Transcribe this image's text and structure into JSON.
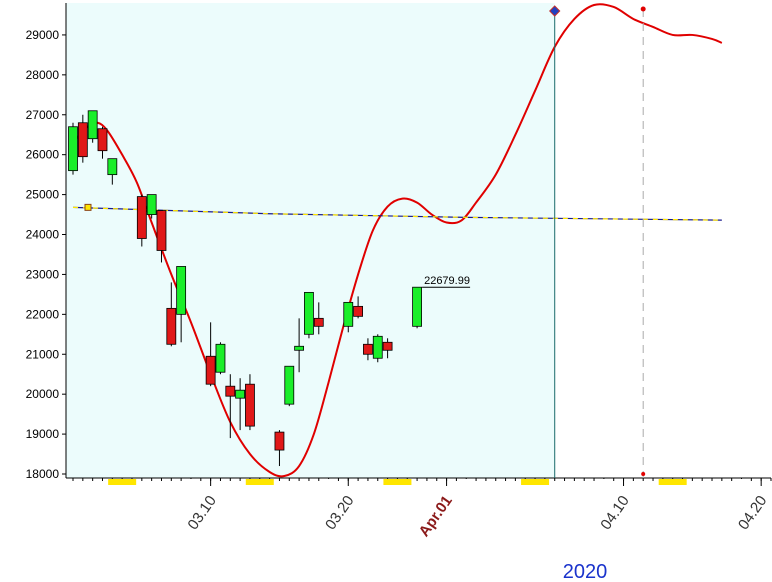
{
  "chart_data": {
    "type": "candlestick",
    "title": "",
    "xlabel": "",
    "ylabel": "",
    "ylim": [
      17900,
      29800
    ],
    "y_ticks": [
      18000,
      19000,
      20000,
      21000,
      22000,
      23000,
      24000,
      25000,
      26000,
      27000,
      28000,
      29000
    ],
    "x_tick_labels": [
      {
        "label": "03.10",
        "day": 14,
        "month_start": false
      },
      {
        "label": "03.20",
        "day": 28,
        "month_start": false
      },
      {
        "label": "Apr.01",
        "day": 38,
        "month_start": true
      },
      {
        "label": "04.10",
        "day": 56,
        "month_start": false
      },
      {
        "label": "04.20",
        "day": 70,
        "month_start": false
      }
    ],
    "year_label": "2020",
    "x_range": [
      0,
      71
    ],
    "forecast_start_day": 49,
    "forecast_peak_day": 58,
    "price_label": "22679.99",
    "candles": [
      {
        "day": 0,
        "open": 25600,
        "high": 26800,
        "low": 25500,
        "close": 26700
      },
      {
        "day": 1,
        "open": 26800,
        "high": 27000,
        "low": 25800,
        "close": 25950
      },
      {
        "day": 2,
        "open": 26400,
        "high": 27100,
        "low": 26300,
        "close": 27100
      },
      {
        "day": 3,
        "open": 26650,
        "high": 26700,
        "low": 25900,
        "close": 26100
      },
      {
        "day": 4,
        "open": 25500,
        "high": 25900,
        "low": 25250,
        "close": 25900
      },
      {
        "day": 7,
        "open": 24950,
        "high": 25000,
        "low": 23700,
        "close": 23900
      },
      {
        "day": 8,
        "open": 24500,
        "high": 25000,
        "low": 24400,
        "close": 25000
      },
      {
        "day": 9,
        "open": 24600,
        "high": 24600,
        "low": 23300,
        "close": 23600
      },
      {
        "day": 10,
        "open": 22150,
        "high": 22800,
        "low": 21200,
        "close": 21250
      },
      {
        "day": 11,
        "open": 22000,
        "high": 23200,
        "low": 21300,
        "close": 23200
      },
      {
        "day": 14,
        "open": 20950,
        "high": 21800,
        "low": 20200,
        "close": 20250
      },
      {
        "day": 15,
        "open": 20550,
        "high": 21300,
        "low": 20500,
        "close": 21250
      },
      {
        "day": 16,
        "open": 20200,
        "high": 20500,
        "low": 18900,
        "close": 19950
      },
      {
        "day": 17,
        "open": 19900,
        "high": 20400,
        "low": 19100,
        "close": 20100
      },
      {
        "day": 18,
        "open": 20250,
        "high": 20500,
        "low": 19100,
        "close": 19200
      },
      {
        "day": 21,
        "open": 19050,
        "high": 19100,
        "low": 18200,
        "close": 18600
      },
      {
        "day": 22,
        "open": 19750,
        "high": 20700,
        "low": 19700,
        "close": 20700
      },
      {
        "day": 23,
        "open": 21100,
        "high": 21900,
        "low": 20550,
        "close": 21200
      },
      {
        "day": 24,
        "open": 21500,
        "high": 22550,
        "low": 21400,
        "close": 22550
      },
      {
        "day": 25,
        "open": 21900,
        "high": 22300,
        "low": 21500,
        "close": 21700
      },
      {
        "day": 28,
        "open": 21700,
        "high": 22300,
        "low": 21550,
        "close": 22300
      },
      {
        "day": 29,
        "open": 22200,
        "high": 22450,
        "low": 21900,
        "close": 21950
      },
      {
        "day": 30,
        "open": 21250,
        "high": 21400,
        "low": 20850,
        "close": 21000
      },
      {
        "day": 31,
        "open": 20900,
        "high": 21500,
        "low": 20800,
        "close": 21450
      },
      {
        "day": 32,
        "open": 21300,
        "high": 21400,
        "low": 20900,
        "close": 21100
      },
      {
        "day": 35,
        "open": 21700,
        "high": 22680,
        "low": 21650,
        "close": 22680
      }
    ],
    "series": [
      {
        "type": "curve",
        "color": "#e00000",
        "points": [
          [
            0,
            26300
          ],
          [
            1.5,
            26700
          ],
          [
            2.5,
            26800
          ],
          [
            3.5,
            26600
          ],
          [
            5,
            26000
          ],
          [
            6.5,
            25300
          ],
          [
            8,
            24300
          ],
          [
            10,
            23000
          ],
          [
            12,
            21800
          ],
          [
            14,
            20500
          ],
          [
            16,
            19300
          ],
          [
            18,
            18500
          ],
          [
            20,
            18050
          ],
          [
            21.5,
            17950
          ],
          [
            23,
            18200
          ],
          [
            24.5,
            19000
          ],
          [
            26,
            20300
          ],
          [
            27.5,
            21700
          ],
          [
            29,
            23000
          ],
          [
            30.5,
            24100
          ],
          [
            32,
            24700
          ],
          [
            33.5,
            24900
          ],
          [
            35,
            24800
          ],
          [
            36.5,
            24500
          ],
          [
            38,
            24300
          ],
          [
            39.5,
            24350
          ],
          [
            41,
            24800
          ],
          [
            43,
            25500
          ],
          [
            45,
            26500
          ],
          [
            47,
            27600
          ],
          [
            49,
            28700
          ],
          [
            51,
            29400
          ],
          [
            53,
            29750
          ],
          [
            55,
            29700
          ],
          [
            57,
            29400
          ],
          [
            59,
            29200
          ],
          [
            61,
            29000
          ],
          [
            63,
            29000
          ],
          [
            65,
            28900
          ],
          [
            66,
            28800
          ]
        ]
      },
      {
        "type": "dashed-line",
        "color": "#1a1a8c",
        "points": [
          [
            0,
            24680
          ],
          [
            20,
            24520
          ],
          [
            40,
            24430
          ],
          [
            66,
            24360
          ]
        ]
      }
    ]
  }
}
